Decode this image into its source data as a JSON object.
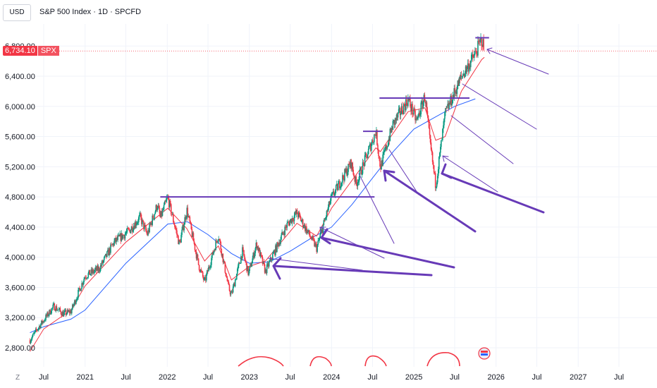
{
  "header": {
    "currency": "USD",
    "title": "S&P 500 Index · 1D · SPCFD"
  },
  "price_tag": {
    "value": "6,734.10",
    "symbol": "SPX"
  },
  "z_button": "Z",
  "colors": {
    "candle_up": "#089981",
    "candle_down": "#f23645",
    "fast_ma": "#f23645",
    "slow_ma": "#2962ff",
    "drawings": "#673ab7",
    "grid": "#f0f3fa",
    "price_line": "#f23645"
  },
  "chart_data": {
    "type": "line",
    "title": "S&P 500 Index · 1D · SPCFD",
    "ylim": [
      2600,
      6950
    ],
    "y_ticks": [
      2800,
      3200,
      3600,
      4000,
      4400,
      4800,
      5200,
      5600,
      6000,
      6400,
      6800
    ],
    "y_tick_labels": [
      "2,800.00",
      "3,200.00",
      "3,600.00",
      "4,000.00",
      "4,400.00",
      "4,800.00",
      "5,200.00",
      "5,600.00",
      "6,000.00",
      "6,400.00",
      "6,800.00"
    ],
    "x_ticks": [
      {
        "date": "2020-07-01",
        "label": "Jul"
      },
      {
        "date": "2021-01-01",
        "label": "2021"
      },
      {
        "date": "2021-07-01",
        "label": "Jul"
      },
      {
        "date": "2022-01-01",
        "label": "2022"
      },
      {
        "date": "2022-07-01",
        "label": "Jul"
      },
      {
        "date": "2023-01-01",
        "label": "2023"
      },
      {
        "date": "2023-07-01",
        "label": "Jul"
      },
      {
        "date": "2024-01-01",
        "label": "2024"
      },
      {
        "date": "2024-07-01",
        "label": "Jul"
      },
      {
        "date": "2025-01-01",
        "label": "2025"
      },
      {
        "date": "2025-07-01",
        "label": "Jul"
      },
      {
        "date": "2026-01-01",
        "label": "2026"
      },
      {
        "date": "2026-07-01",
        "label": "Jul"
      },
      {
        "date": "2027-01-01",
        "label": "2027"
      },
      {
        "date": "2027-07-01",
        "label": "Jul"
      }
    ],
    "current_price": 6734.1,
    "series": [
      {
        "kind": "price",
        "points": [
          [
            "2020-05-01",
            2900
          ],
          [
            "2020-06-15",
            3100
          ],
          [
            "2020-08-15",
            3350
          ],
          [
            "2020-09-25",
            3250
          ],
          [
            "2020-10-30",
            3280
          ],
          [
            "2020-12-31",
            3750
          ],
          [
            "2021-03-05",
            3850
          ],
          [
            "2021-05-10",
            4200
          ],
          [
            "2021-07-15",
            4350
          ],
          [
            "2021-09-02",
            4530
          ],
          [
            "2021-10-04",
            4300
          ],
          [
            "2021-11-18",
            4700
          ],
          [
            "2021-12-01",
            4520
          ],
          [
            "2022-01-03",
            4790
          ],
          [
            "2022-02-24",
            4170
          ],
          [
            "2022-03-29",
            4630
          ],
          [
            "2022-05-20",
            3900
          ],
          [
            "2022-06-16",
            3670
          ],
          [
            "2022-08-16",
            4300
          ],
          [
            "2022-09-30",
            3600
          ],
          [
            "2022-10-13",
            3500
          ],
          [
            "2022-12-01",
            4080
          ],
          [
            "2022-12-28",
            3780
          ],
          [
            "2023-02-02",
            4180
          ],
          [
            "2023-03-13",
            3810
          ],
          [
            "2023-06-15",
            4420
          ],
          [
            "2023-07-31",
            4590
          ],
          [
            "2023-10-27",
            4120
          ],
          [
            "2023-12-29",
            4770
          ],
          [
            "2024-03-28",
            5250
          ],
          [
            "2024-04-19",
            4970
          ],
          [
            "2024-07-16",
            5670
          ],
          [
            "2024-08-05",
            5190
          ],
          [
            "2024-09-30",
            5760
          ],
          [
            "2024-12-06",
            6090
          ],
          [
            "2025-01-13",
            5800
          ],
          [
            "2025-02-19",
            6140
          ],
          [
            "2025-03-13",
            5520
          ],
          [
            "2025-04-08",
            4950
          ],
          [
            "2025-05-20",
            5900
          ],
          [
            "2025-07-31",
            6390
          ],
          [
            "2025-09-30",
            6690
          ],
          [
            "2025-10-29",
            6890
          ],
          [
            "2025-11-10",
            6734
          ]
        ]
      },
      {
        "kind": "fast_ma",
        "points": [
          [
            "2020-05-01",
            2750
          ],
          [
            "2020-07-01",
            3050
          ],
          [
            "2020-10-30",
            3300
          ],
          [
            "2021-01-01",
            3620
          ],
          [
            "2021-07-01",
            4200
          ],
          [
            "2022-01-03",
            4650
          ],
          [
            "2022-03-29",
            4380
          ],
          [
            "2022-06-16",
            3950
          ],
          [
            "2022-08-16",
            4150
          ],
          [
            "2022-10-13",
            3700
          ],
          [
            "2023-01-01",
            3880
          ],
          [
            "2023-03-13",
            3950
          ],
          [
            "2023-07-31",
            4450
          ],
          [
            "2023-10-27",
            4280
          ],
          [
            "2024-01-01",
            4650
          ],
          [
            "2024-07-16",
            5450
          ],
          [
            "2024-08-05",
            5400
          ],
          [
            "2024-12-06",
            5930
          ],
          [
            "2025-02-19",
            5980
          ],
          [
            "2025-04-08",
            5550
          ],
          [
            "2025-05-20",
            5600
          ],
          [
            "2025-07-31",
            6200
          ],
          [
            "2025-10-29",
            6620
          ],
          [
            "2025-11-10",
            6650
          ]
        ]
      },
      {
        "kind": "slow_ma",
        "points": [
          [
            "2020-05-01",
            3000
          ],
          [
            "2020-07-01",
            3080
          ],
          [
            "2020-10-30",
            3180
          ],
          [
            "2021-01-01",
            3300
          ],
          [
            "2021-07-01",
            3920
          ],
          [
            "2022-01-03",
            4440
          ],
          [
            "2022-04-01",
            4470
          ],
          [
            "2022-07-01",
            4300
          ],
          [
            "2022-10-13",
            4050
          ],
          [
            "2023-01-01",
            3920
          ],
          [
            "2023-04-01",
            3940
          ],
          [
            "2023-07-01",
            4080
          ],
          [
            "2023-10-01",
            4250
          ],
          [
            "2024-01-01",
            4400
          ],
          [
            "2024-04-01",
            4700
          ],
          [
            "2024-07-01",
            5050
          ],
          [
            "2024-10-01",
            5400
          ],
          [
            "2025-01-01",
            5700
          ],
          [
            "2025-04-01",
            5850
          ],
          [
            "2025-07-01",
            6000
          ],
          [
            "2025-10-01",
            6100
          ]
        ]
      }
    ],
    "horizontal_levels": [
      {
        "price": 4800,
        "from": "2021-12-01",
        "to": "2024-07-10"
      },
      {
        "price": 5670,
        "from": "2024-05-20",
        "to": "2024-08-15"
      },
      {
        "price": 6110,
        "from": "2024-08-01",
        "to": "2025-09-05"
      },
      {
        "price": 6910,
        "from": "2025-10-01",
        "to": "2025-12-01"
      }
    ]
  }
}
